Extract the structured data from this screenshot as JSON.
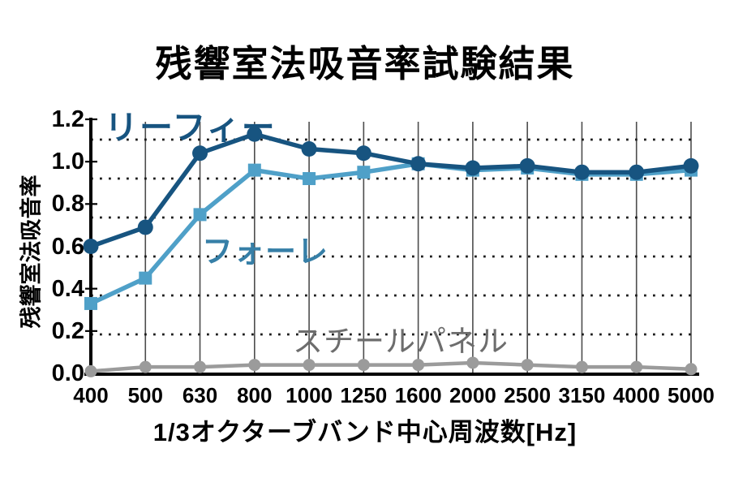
{
  "chart_data": {
    "type": "line",
    "title": "残響室法吸音率試験結果",
    "xlabel": "1/3オクターブバンド中心周波数[Hz]",
    "ylabel": "残響室法吸音率",
    "categories": [
      "400",
      "500",
      "630",
      "800",
      "1000",
      "1250",
      "1600",
      "2000",
      "2500",
      "3150",
      "4000",
      "5000"
    ],
    "yticks": [
      "0.0",
      "0.2",
      "0.4",
      "0.6",
      "0.8",
      "1.0",
      "1.2"
    ],
    "ylim": [
      0.0,
      1.2
    ],
    "grid": {
      "vertical": "solid thin line at every category",
      "horizontal": "dotted lines between labeled ticks",
      "horizontal_dotted_values": [
        1.1,
        0.92,
        0.74,
        0.55,
        0.37,
        0.19
      ]
    },
    "legend_position": "inline labels beside each line",
    "series": [
      {
        "name": "リーフィー",
        "marker": "circle",
        "color": "#175480",
        "label_color": "#175480",
        "values": [
          0.6,
          0.69,
          1.04,
          1.13,
          1.06,
          1.04,
          0.99,
          0.97,
          0.98,
          0.95,
          0.95,
          0.98
        ]
      },
      {
        "name": "フォーレ",
        "marker": "square",
        "color": "#4fa0c8",
        "label_color": "#367fa7",
        "values": [
          0.33,
          0.45,
          0.75,
          0.96,
          0.92,
          0.95,
          0.99,
          0.96,
          0.97,
          0.94,
          0.94,
          0.96
        ]
      },
      {
        "name": "スチールパネル",
        "marker": "circle",
        "color": "#9b9b9b",
        "label_color": "#6d6d6d",
        "values": [
          0.01,
          0.03,
          0.03,
          0.04,
          0.04,
          0.04,
          0.04,
          0.05,
          0.04,
          0.03,
          0.03,
          0.02
        ]
      }
    ]
  }
}
